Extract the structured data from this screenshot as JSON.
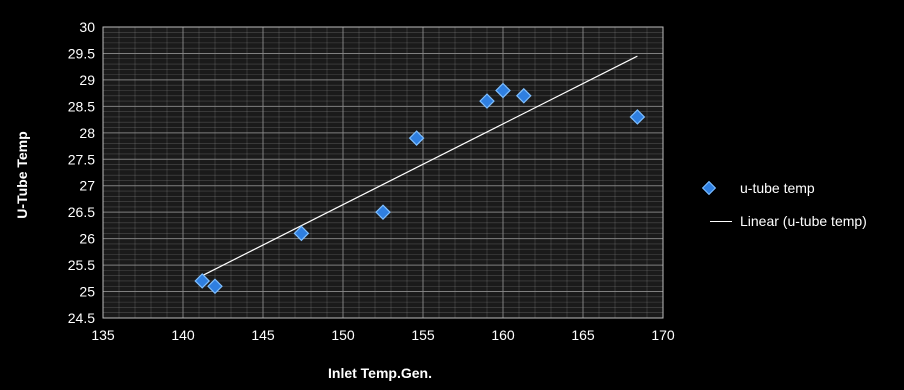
{
  "chart_data": {
    "type": "scatter",
    "xlabel": "Inlet Temp.Gen.",
    "ylabel": "U-Tube Temp",
    "xlim": [
      135,
      170
    ],
    "ylim": [
      24.5,
      30
    ],
    "x_ticks": [
      "135",
      "140",
      "145",
      "150",
      "155",
      "160",
      "165",
      "170"
    ],
    "y_ticks": [
      "24.5",
      "25",
      "25.5",
      "26",
      "26.5",
      "27",
      "27.5",
      "28",
      "28.5",
      "29",
      "29.5",
      "30"
    ],
    "grid": true,
    "legend_position": "right",
    "series": [
      {
        "name": "u-tube temp",
        "points": [
          {
            "x": 141.2,
            "y": 25.2
          },
          {
            "x": 142.0,
            "y": 25.1
          },
          {
            "x": 147.4,
            "y": 26.1
          },
          {
            "x": 152.5,
            "y": 26.5
          },
          {
            "x": 154.6,
            "y": 27.9
          },
          {
            "x": 159.0,
            "y": 28.6
          },
          {
            "x": 160.0,
            "y": 28.8
          },
          {
            "x": 161.3,
            "y": 28.7
          },
          {
            "x": 168.4,
            "y": 28.3
          }
        ]
      }
    ],
    "trendline": {
      "name": "Linear (u-tube temp)",
      "start": {
        "x": 141.2,
        "y": 25.3
      },
      "end": {
        "x": 168.4,
        "y": 29.45
      }
    },
    "colors": {
      "background": "#000000",
      "plot_background": "#1a1a1a",
      "grid": "#8a8a8a",
      "marker": "#2f7fe0",
      "marker_edge": "#7fbfff",
      "trendline": "#ffffff"
    }
  }
}
